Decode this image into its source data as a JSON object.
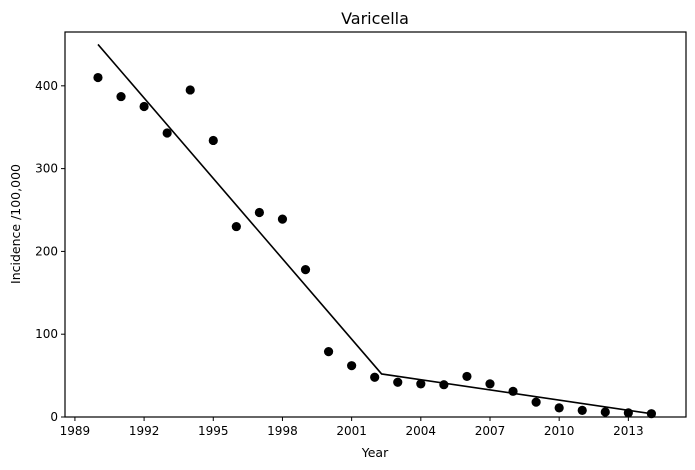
{
  "chart_data": {
    "type": "scatter",
    "title": "Varicella",
    "xlabel": "Year",
    "ylabel": "Incidence /100,000",
    "xlim": [
      1988.6,
      1989.9
    ],
    "ylim": [
      0,
      465
    ],
    "xticks": [
      1989,
      1992,
      1995,
      1998,
      2001,
      2004,
      2007,
      2010,
      2013
    ],
    "yticks": [
      0,
      100,
      200,
      300,
      400
    ],
    "grid": false,
    "legend": "none",
    "series": [
      {
        "type": "scatter",
        "color": "#000000",
        "x": [
          1990,
          1991,
          1992,
          1993,
          1994,
          1995,
          1996,
          1997,
          1998,
          1999,
          2000,
          2001,
          2002,
          2003,
          2004,
          2005,
          2006,
          2007,
          2008,
          2009,
          2010,
          2011,
          2012,
          2013,
          2014
        ],
        "y": [
          410,
          387,
          375,
          343,
          395,
          334,
          230,
          247,
          239,
          178,
          79,
          62,
          48,
          42,
          40,
          39,
          49,
          40,
          31,
          18,
          11,
          8,
          6,
          5,
          4
        ]
      },
      {
        "type": "line",
        "color": "#000000",
        "x": [
          1990,
          2002.3,
          2014
        ],
        "y": [
          450,
          52,
          4
        ]
      }
    ]
  }
}
